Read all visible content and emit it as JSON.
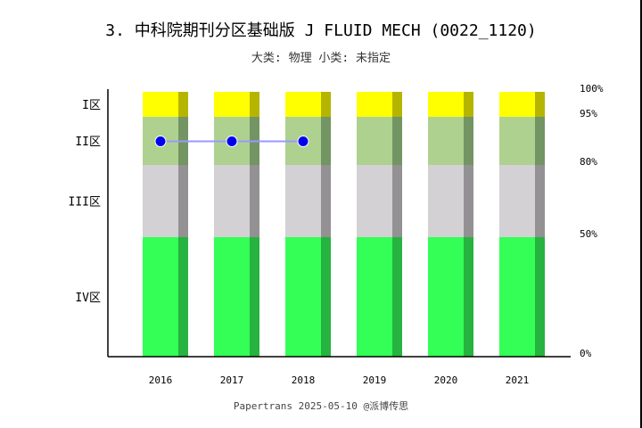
{
  "chart_data": {
    "type": "bar",
    "title": "3. 中科院期刊分区基础版 J FLUID MECH (0022_1120)",
    "subtitle": "大类: 物理 小类: 未指定",
    "categories": [
      "2016",
      "2017",
      "2018",
      "2019",
      "2020",
      "2021"
    ],
    "zones": [
      {
        "label": "I区",
        "from": 95,
        "to": 100,
        "color": "#ffff00",
        "shade": "#b5b500"
      },
      {
        "label": "II区",
        "from": 80,
        "to": 95,
        "color": "#aed190",
        "shade": "#739463"
      },
      {
        "label": "III区",
        "from": 50,
        "to": 80,
        "color": "#d3d1d3",
        "shade": "#939193"
      },
      {
        "label": "IV区",
        "from": 0,
        "to": 50,
        "color": "#33ff57",
        "shade": "#26b33f"
      }
    ],
    "right_ticks": [
      "100%",
      "95%",
      "80%",
      "50%",
      "0%"
    ],
    "series": [
      {
        "values": [
          "II区",
          "II区",
          "II区",
          null,
          null,
          null
        ],
        "color": "#0000ee",
        "line_color": "#9999ff"
      }
    ],
    "footer": "Papertrans   2025-05-10   @派博传思"
  }
}
